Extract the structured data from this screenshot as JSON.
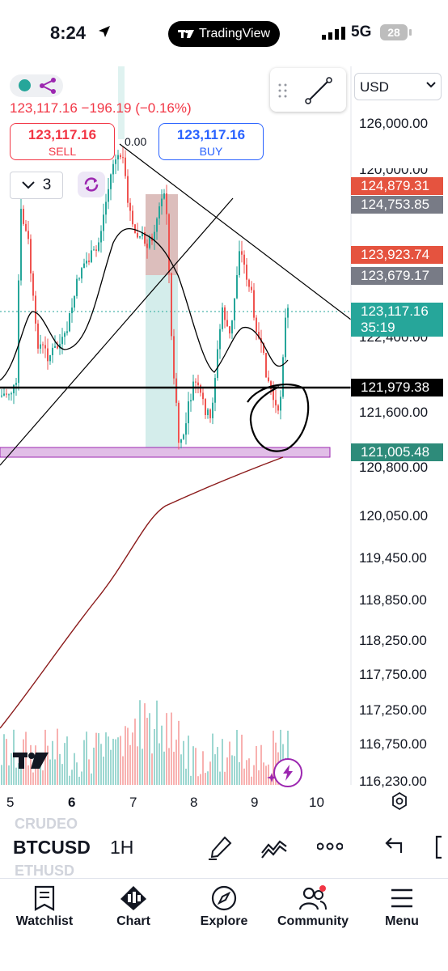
{
  "status_bar": {
    "time": "8:24",
    "app_pill": "TradingView",
    "network": "5G",
    "battery": "28"
  },
  "header": {
    "price_line": "123,117.16 −196.19 (−0.16%)",
    "sell": {
      "price": "123,117.16",
      "label": "SELL"
    },
    "buy": {
      "price": "123,117.16",
      "label": "BUY"
    },
    "interval_count": "3",
    "currency": "USD",
    "fib_label": "0.00"
  },
  "colors": {
    "bull": "#26a69a",
    "bear": "#ef5350",
    "sell": "#f23645",
    "buy": "#2962ff",
    "accent": "#9c27b0",
    "purple_zone": "#e1bee7"
  },
  "axis": {
    "price_labels": [
      "126,000.00",
      "122,400.00",
      "121,600.00",
      "120,800.00",
      "120,050.00",
      "119,450.00",
      "118,850.00",
      "118,250.00",
      "117,750.00",
      "117,250.00",
      "116,750.00",
      "116,230.00"
    ],
    "partial_label": "120,000.00",
    "x_labels": [
      "5",
      "6",
      "7",
      "8",
      "9",
      "10"
    ]
  },
  "price_tags": [
    {
      "text": "124,879.31",
      "color": "#e5533f"
    },
    {
      "text": "124,753.85",
      "color": "#787b86"
    },
    {
      "text": "123,923.74",
      "color": "#e5533f"
    },
    {
      "text": "123,679.17",
      "color": "#787b86"
    },
    {
      "text": "123,117.16",
      "color": "#26a69a",
      "countdown": "35:19"
    },
    {
      "text": "121,979.38",
      "color": "#000000"
    },
    {
      "text": "121,005.48",
      "color": "#2e8b7a"
    }
  ],
  "bottom_toolbar": {
    "symbol": "BTCUSD",
    "timeframe": "1H",
    "ghost_above": "CRUDEO",
    "ghost_below": "ETHUSD"
  },
  "nav": [
    {
      "label": "Watchlist",
      "icon": "watchlist-icon"
    },
    {
      "label": "Chart",
      "icon": "chart-icon"
    },
    {
      "label": "Explore",
      "icon": "compass-icon"
    },
    {
      "label": "Community",
      "icon": "community-icon"
    },
    {
      "label": "Menu",
      "icon": "menu-icon"
    }
  ]
}
